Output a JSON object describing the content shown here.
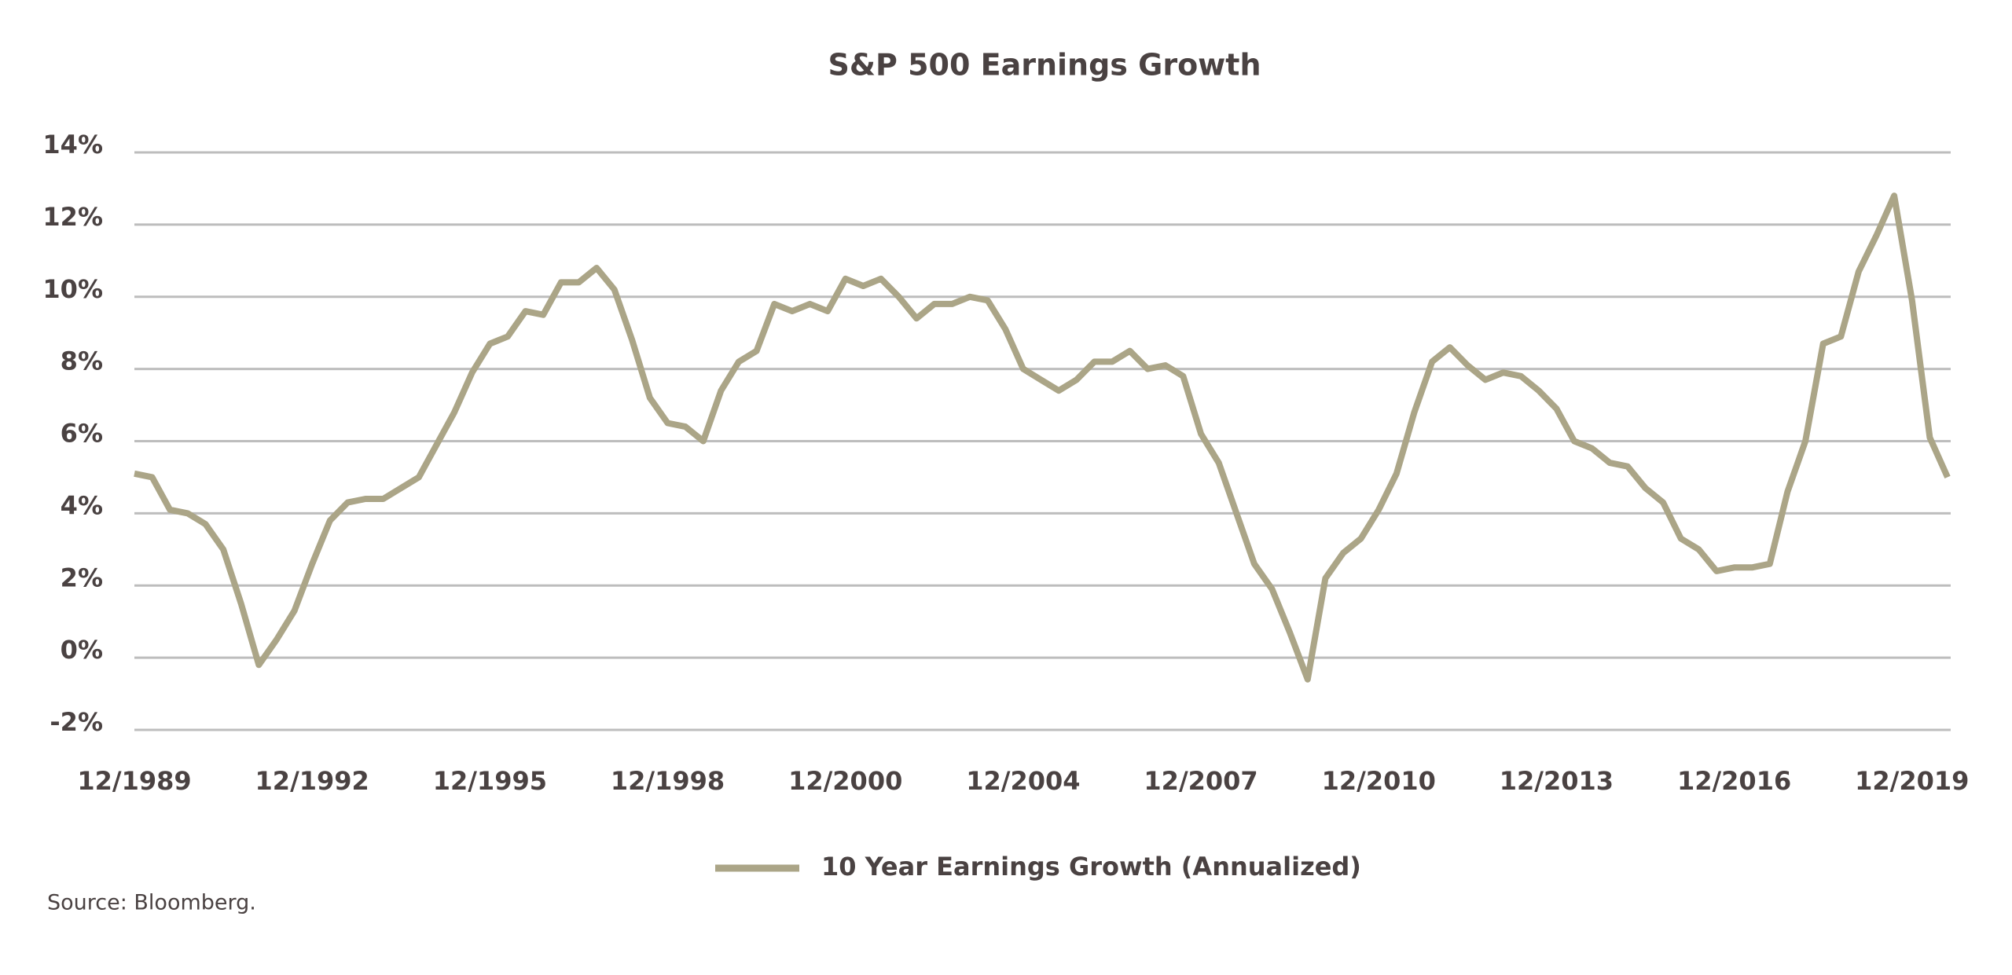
{
  "chart_data": {
    "type": "line",
    "title": "S&P 500 Earnings Growth",
    "categories": [
      "12/1989",
      null,
      null,
      null,
      null,
      null,
      null,
      null,
      null,
      null,
      "12/1992",
      null,
      null,
      null,
      null,
      null,
      null,
      null,
      null,
      null,
      "12/1995",
      null,
      null,
      null,
      null,
      null,
      null,
      null,
      null,
      null,
      "12/1998",
      null,
      null,
      null,
      null,
      null,
      null,
      null,
      null,
      null,
      "12/2000",
      null,
      null,
      null,
      null,
      null,
      null,
      null,
      null,
      null,
      "12/2004",
      null,
      null,
      null,
      null,
      null,
      null,
      null,
      null,
      null,
      "12/2007",
      null,
      null,
      null,
      null,
      null,
      null,
      null,
      null,
      null,
      "12/2010",
      null,
      null,
      null,
      null,
      null,
      null,
      null,
      null,
      null,
      "12/2013",
      null,
      null,
      null,
      null,
      null,
      null,
      null,
      null,
      null,
      "12/2016",
      null,
      null,
      null,
      null,
      null,
      null,
      null,
      null,
      null,
      "12/2019",
      null,
      null
    ],
    "series": [
      {
        "name": "10 Year Earnings Growth (Annualized)",
        "color": "#aba587",
        "values": [
          5.1,
          5.0,
          4.1,
          4.0,
          3.7,
          3.0,
          1.5,
          -0.2,
          0.5,
          1.3,
          2.6,
          3.8,
          4.3,
          4.4,
          4.4,
          4.7,
          5.0,
          5.9,
          6.8,
          7.9,
          8.7,
          8.9,
          9.6,
          9.5,
          10.4,
          10.4,
          10.8,
          10.2,
          8.8,
          7.2,
          6.5,
          6.4,
          6.0,
          7.4,
          8.2,
          8.5,
          9.8,
          9.6,
          9.8,
          9.6,
          10.5,
          10.3,
          10.5,
          10.0,
          9.4,
          9.8,
          9.8,
          10.0,
          9.9,
          9.1,
          8.0,
          7.7,
          7.4,
          7.7,
          8.2,
          8.2,
          8.5,
          8.0,
          8.1,
          7.8,
          6.2,
          5.4,
          4.0,
          2.6,
          1.9,
          0.7,
          -0.6,
          2.2,
          2.9,
          3.3,
          4.1,
          5.1,
          6.8,
          8.2,
          8.6,
          8.1,
          7.7,
          7.9,
          7.8,
          7.4,
          6.9,
          6.0,
          5.8,
          5.4,
          5.3,
          4.7,
          4.3,
          3.3,
          3.0,
          2.4,
          2.5,
          2.5,
          2.6,
          4.6,
          6.0,
          8.7,
          8.9,
          10.7,
          11.7,
          12.8,
          9.9,
          6.1,
          5.0
        ]
      }
    ],
    "ylim": [
      -2,
      14
    ],
    "yticks": [
      {
        "value": -2,
        "label": "-2%"
      },
      {
        "value": 0,
        "label": "0%"
      },
      {
        "value": 2,
        "label": "2%"
      },
      {
        "value": 4,
        "label": "4%"
      },
      {
        "value": 6,
        "label": "6%"
      },
      {
        "value": 8,
        "label": "8%"
      },
      {
        "value": 10,
        "label": "10%"
      },
      {
        "value": 12,
        "label": "12%"
      },
      {
        "value": 14,
        "label": "14%"
      }
    ],
    "grid": true,
    "legend": "bottom",
    "source": "Source: Bloomberg."
  }
}
